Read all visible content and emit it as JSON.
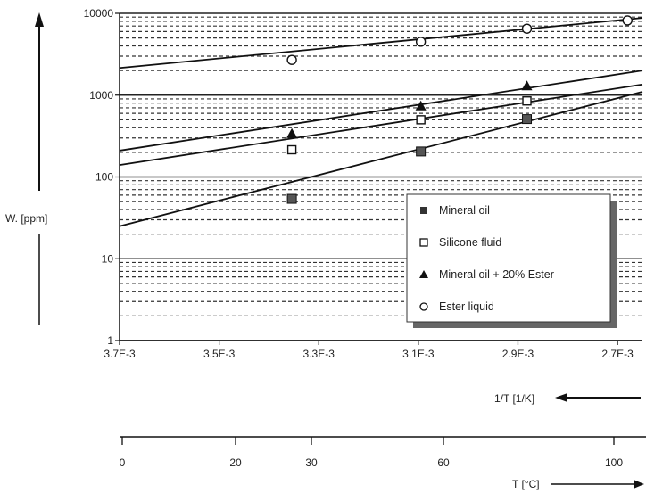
{
  "chart_data": {
    "type": "line",
    "title": "",
    "y_axis": {
      "label": "W. [ppm]",
      "scale": "log",
      "range": [
        1,
        10000
      ],
      "tick_labels": [
        "10000",
        "1000",
        "100",
        "10",
        "1"
      ]
    },
    "x_axis": {
      "label": "1/T [1/K]",
      "range": [
        0.0037,
        0.00265
      ],
      "direction": "decreasing",
      "tick_values": [
        0.0037,
        0.0035,
        0.0033,
        0.0031,
        0.0029,
        0.0027
      ],
      "tick_labels": [
        "3.7E-3",
        "3.5E-3",
        "3.3E-3",
        "3.1E-3",
        "2.9E-3",
        "2.7E-3"
      ]
    },
    "temperature_axis": {
      "label": "T [°C]",
      "tick_labels": [
        "0",
        "20",
        "30",
        "60",
        "100"
      ]
    },
    "grid": true,
    "legend_position": "right",
    "series": [
      {
        "name": "Mineral oil",
        "marker": "filled-square",
        "points": [
          [
            0.003354,
            54
          ],
          [
            0.003095,
            205
          ],
          [
            0.002882,
            510
          ]
        ],
        "curve": [
          [
            0.0037,
            25
          ],
          [
            0.00265,
            1100
          ]
        ]
      },
      {
        "name": "Silicone fluid",
        "marker": "open-square",
        "points": [
          [
            0.003354,
            215
          ],
          [
            0.003095,
            500
          ],
          [
            0.002882,
            850
          ]
        ],
        "curve": [
          [
            0.0037,
            140
          ],
          [
            0.00265,
            1350
          ]
        ]
      },
      {
        "name": "Mineral oil + 20% Ester",
        "marker": "filled-triangle",
        "points": [
          [
            0.003354,
            340
          ],
          [
            0.003095,
            740
          ],
          [
            0.002882,
            1300
          ]
        ],
        "curve": [
          [
            0.0037,
            210
          ],
          [
            0.00265,
            2000
          ]
        ]
      },
      {
        "name": "Ester liquid",
        "marker": "open-circle",
        "points": [
          [
            0.003354,
            2700
          ],
          [
            0.003095,
            4500
          ],
          [
            0.002882,
            6500
          ],
          [
            0.00268,
            8200
          ]
        ],
        "curve": [
          [
            0.0037,
            2150
          ],
          [
            0.00265,
            8800
          ]
        ]
      }
    ]
  }
}
